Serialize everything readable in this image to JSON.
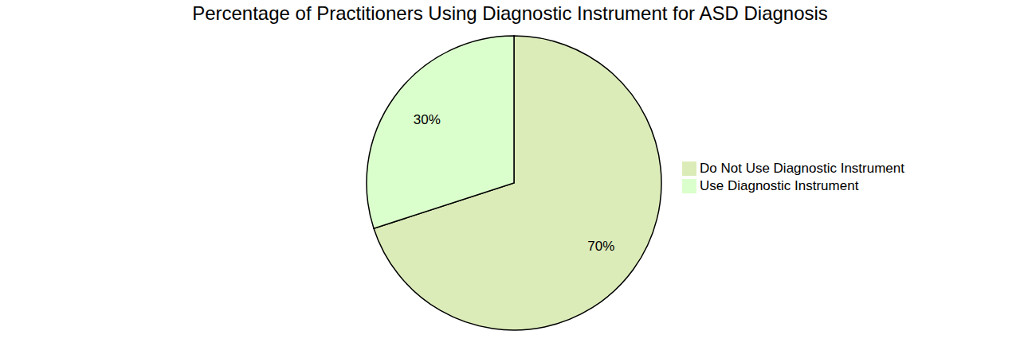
{
  "chart_data": {
    "type": "pie",
    "title": "Percentage of Practitioners Using Diagnostic Instrument for ASD Diagnosis",
    "categories": [
      "Do Not Use Diagnostic Instrument",
      "Use Diagnostic Instrument"
    ],
    "values": [
      70,
      30
    ],
    "value_labels": [
      "70%",
      "30%"
    ],
    "colors": [
      "#dcecb9",
      "#dbffcc"
    ],
    "data_labels": true,
    "legend": "right"
  }
}
